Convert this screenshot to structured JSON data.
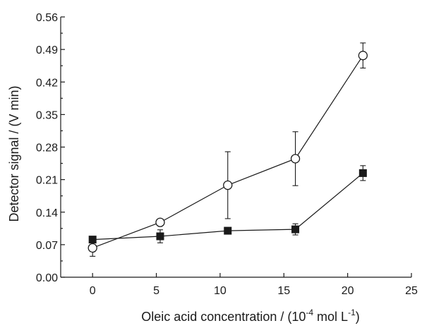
{
  "chart_data": {
    "type": "scatter",
    "xlabel": "Oleic acid concentration / (10",
    "xlabel_sup1": "-4",
    "xlabel_mid": " mol L",
    "xlabel_sup2": "-1",
    "xlabel_end": ")",
    "ylabel": "Detector signal / (V min)",
    "xlim": [
      -2.5,
      25
    ],
    "ylim": [
      0,
      0.56
    ],
    "x_ticks": [
      0,
      5,
      10,
      15,
      20,
      25
    ],
    "x_tick_labels": [
      "0",
      "5",
      "10",
      "15",
      "20",
      "25"
    ],
    "y_ticks": [
      0,
      0.07,
      0.14,
      0.21,
      0.28,
      0.35,
      0.42,
      0.49,
      0.56
    ],
    "y_tick_labels": [
      "0.00",
      "0.07",
      "0.14",
      "0.21",
      "0.28",
      "0.35",
      "0.42",
      "0.49",
      "0.56"
    ],
    "grid": false,
    "series": [
      {
        "marker": "open-circle",
        "color": "#1a1a1a",
        "points": [
          {
            "x": 0,
            "y": 0.063,
            "err": 0.018
          },
          {
            "x": 5.3,
            "y": 0.118,
            "err": 0.003
          },
          {
            "x": 10.6,
            "y": 0.198,
            "err": 0.072
          },
          {
            "x": 15.9,
            "y": 0.255,
            "err": 0.058
          },
          {
            "x": 21.2,
            "y": 0.477,
            "err": 0.027
          }
        ]
      },
      {
        "marker": "filled-square",
        "color": "#1a1a1a",
        "points": [
          {
            "x": 0,
            "y": 0.081,
            "err": 0.003
          },
          {
            "x": 5.3,
            "y": 0.088,
            "err": 0.014
          },
          {
            "x": 10.6,
            "y": 0.1,
            "err": 0.003
          },
          {
            "x": 15.9,
            "y": 0.103,
            "err": 0.012
          },
          {
            "x": 21.2,
            "y": 0.224,
            "err": 0.016
          }
        ]
      }
    ]
  }
}
